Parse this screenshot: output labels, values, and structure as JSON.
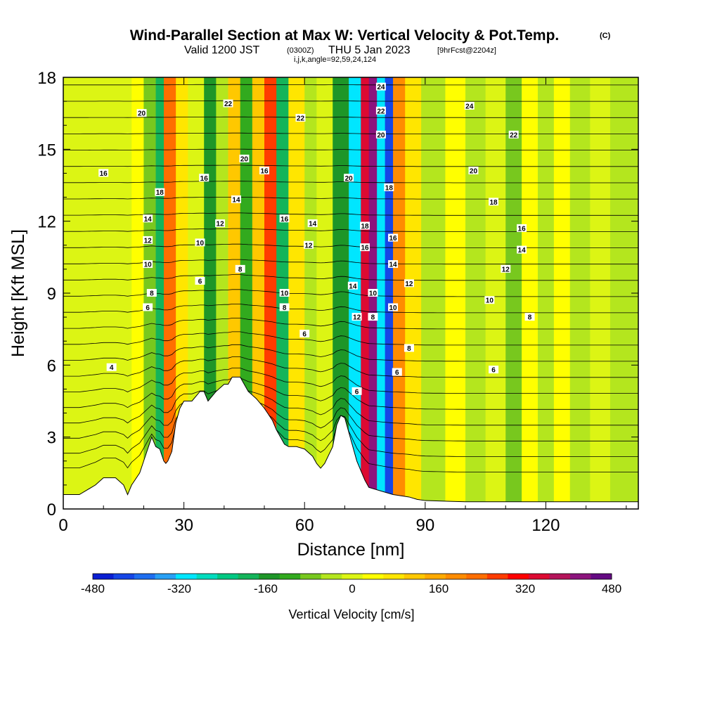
{
  "title": {
    "main": "Wind-Parallel Section at Max W: Vertical Velocity & Pot.Temp.",
    "main_suffix": "(C)",
    "valid_prefix": "Valid 1200 JST",
    "valid_z": "(0300Z)",
    "valid_date": "THU 5 Jan 2023",
    "forecast": "[9hrFcst@2204z]",
    "indices": "i,j,k,angle=92,59,24,124"
  },
  "chart_data": {
    "type": "heatmap",
    "xlabel": "Distance [nm]",
    "ylabel": "Height [Kft MSL]",
    "xlim": [
      0,
      143
    ],
    "ylim": [
      0,
      18
    ],
    "x_ticks": [
      0,
      30,
      60,
      90,
      120
    ],
    "y_ticks": [
      0,
      3,
      6,
      9,
      12,
      15,
      18
    ],
    "x_tick_labels": [
      "0",
      "30",
      "60",
      "90",
      "120"
    ],
    "y_tick_labels": [
      "0",
      "3",
      "6",
      "9",
      "12",
      "15",
      "18"
    ],
    "colorbar": {
      "title": "Vertical Velocity [cm/s]",
      "min": -480,
      "max": 480,
      "step": 40,
      "tick_values": [
        -480,
        -320,
        -160,
        0,
        160,
        320,
        480
      ],
      "tick_labels": [
        "-480",
        "-320",
        "-160",
        "0",
        "160",
        "320",
        "480"
      ],
      "colors": [
        "#0a1ed2",
        "#1646e6",
        "#1e6ef0",
        "#28a0f5",
        "#00e6ff",
        "#00dcbe",
        "#00c882",
        "#14b45a",
        "#1e9628",
        "#32aa1e",
        "#78c81e",
        "#b4e61e",
        "#dcf514",
        "#ffff00",
        "#ffe600",
        "#ffc800",
        "#ffaa00",
        "#ff8c00",
        "#ff6e00",
        "#ff3c00",
        "#ff0000",
        "#dc0a32",
        "#b4145a",
        "#8c147d",
        "#640a82"
      ]
    },
    "vertical_velocity_cells": [
      {
        "x_range": [
          0,
          17
        ],
        "z_range": [
          0,
          18
        ],
        "value": 20
      },
      {
        "x_range": [
          17,
          20
        ],
        "z_range": [
          0,
          18
        ],
        "value": 60
      },
      {
        "x_range": [
          20,
          23
        ],
        "z_range": [
          0,
          18
        ],
        "value": -60
      },
      {
        "x_range": [
          23,
          25
        ],
        "z_range": [
          0,
          18
        ],
        "value": -200
      },
      {
        "x_range": [
          25,
          28
        ],
        "z_range": [
          0,
          18
        ],
        "value": 260
      },
      {
        "x_range": [
          28,
          31
        ],
        "z_range": [
          0,
          18
        ],
        "value": 100
      },
      {
        "x_range": [
          31,
          35
        ],
        "z_range": [
          0,
          18
        ],
        "value": 20
      },
      {
        "x_range": [
          35,
          38
        ],
        "z_range": [
          0,
          18
        ],
        "value": -160
      },
      {
        "x_range": [
          38,
          41
        ],
        "z_range": [
          0,
          18
        ],
        "value": -40
      },
      {
        "x_range": [
          41,
          44
        ],
        "z_range": [
          0,
          18
        ],
        "value": 140
      },
      {
        "x_range": [
          44,
          47
        ],
        "z_range": [
          0,
          18
        ],
        "value": -120
      },
      {
        "x_range": [
          47,
          50
        ],
        "z_range": [
          0,
          18
        ],
        "value": 120
      },
      {
        "x_range": [
          50,
          53
        ],
        "z_range": [
          0,
          18
        ],
        "value": 300
      },
      {
        "x_range": [
          53,
          56
        ],
        "z_range": [
          0,
          18
        ],
        "value": -200
      },
      {
        "x_range": [
          56,
          60
        ],
        "z_range": [
          0,
          18
        ],
        "value": 80
      },
      {
        "x_range": [
          60,
          63
        ],
        "z_range": [
          0,
          18
        ],
        "value": -40
      },
      {
        "x_range": [
          63,
          67
        ],
        "z_range": [
          0,
          18
        ],
        "value": 20
      },
      {
        "x_range": [
          67,
          71
        ],
        "z_range": [
          0,
          18
        ],
        "value": -160
      },
      {
        "x_range": [
          71,
          74
        ],
        "z_range": [
          0,
          18
        ],
        "value": -320
      },
      {
        "x_range": [
          74,
          76
        ],
        "z_range": [
          0,
          18
        ],
        "value": 380
      },
      {
        "x_range": [
          76,
          78
        ],
        "z_range": [
          0,
          18
        ],
        "value": 460
      },
      {
        "x_range": [
          78,
          80
        ],
        "z_range": [
          0,
          18
        ],
        "value": -300
      },
      {
        "x_range": [
          80,
          82
        ],
        "z_range": [
          0,
          18
        ],
        "value": -440
      },
      {
        "x_range": [
          82,
          85
        ],
        "z_range": [
          0,
          18
        ],
        "value": 200
      },
      {
        "x_range": [
          85,
          89
        ],
        "z_range": [
          0,
          18
        ],
        "value": 80
      },
      {
        "x_range": [
          89,
          95
        ],
        "z_range": [
          0,
          18
        ],
        "value": -40
      },
      {
        "x_range": [
          95,
          100
        ],
        "z_range": [
          0,
          18
        ],
        "value": 40
      },
      {
        "x_range": [
          100,
          105
        ],
        "z_range": [
          0,
          18
        ],
        "value": -40
      },
      {
        "x_range": [
          105,
          110
        ],
        "z_range": [
          0,
          18
        ],
        "value": 20
      },
      {
        "x_range": [
          110,
          114
        ],
        "z_range": [
          0,
          18
        ],
        "value": -60
      },
      {
        "x_range": [
          114,
          118
        ],
        "z_range": [
          0,
          18
        ],
        "value": 40
      },
      {
        "x_range": [
          118,
          122
        ],
        "z_range": [
          0,
          18
        ],
        "value": -40
      },
      {
        "x_range": [
          122,
          126
        ],
        "z_range": [
          0,
          18
        ],
        "value": 60
      },
      {
        "x_range": [
          126,
          131
        ],
        "z_range": [
          0,
          18
        ],
        "value": -40
      },
      {
        "x_range": [
          131,
          136
        ],
        "z_range": [
          0,
          18
        ],
        "value": 20
      },
      {
        "x_range": [
          136,
          143
        ],
        "z_range": [
          0,
          18
        ],
        "value": -20
      }
    ],
    "terrain": {
      "x": [
        0,
        4,
        8,
        10,
        13,
        15,
        16,
        17,
        19,
        20,
        21,
        22,
        23,
        24,
        25,
        25.5,
        26,
        27,
        28,
        29,
        30,
        32,
        34,
        35,
        36,
        38,
        40,
        41,
        42,
        44,
        45,
        46,
        48,
        50,
        52,
        53,
        54,
        55,
        56,
        58,
        60,
        62,
        63,
        64,
        65,
        67,
        68,
        69,
        70,
        71,
        72,
        73,
        74,
        75,
        76,
        80,
        82,
        86,
        88,
        90,
        100,
        110,
        120,
        143
      ],
      "z": [
        0.6,
        0.6,
        1.0,
        1.3,
        1.3,
        1.0,
        0.6,
        1.0,
        1.5,
        2.0,
        2.5,
        3.0,
        2.6,
        2.5,
        2.0,
        1.9,
        2.0,
        2.4,
        3.6,
        4.2,
        4.5,
        4.5,
        4.9,
        4.9,
        4.5,
        4.9,
        5.2,
        5.2,
        5.5,
        5.5,
        5.2,
        4.9,
        4.6,
        4.2,
        3.7,
        3.3,
        3.0,
        2.7,
        2.6,
        2.6,
        2.5,
        2.2,
        1.9,
        1.7,
        1.9,
        2.6,
        3.5,
        3.9,
        3.8,
        3.2,
        2.6,
        2.0,
        1.6,
        1.2,
        0.9,
        0.7,
        0.6,
        0.5,
        0.4,
        0.35,
        0.3,
        0.3,
        0.3,
        0.3
      ]
    },
    "potential_temperature_labels": [
      {
        "text": "20",
        "x": 19.5,
        "z": 16.5
      },
      {
        "text": "22",
        "x": 41,
        "z": 16.9
      },
      {
        "text": "22",
        "x": 59,
        "z": 16.3
      },
      {
        "text": "24",
        "x": 79,
        "z": 17.6
      },
      {
        "text": "22",
        "x": 79,
        "z": 16.6
      },
      {
        "text": "20",
        "x": 79,
        "z": 15.6
      },
      {
        "text": "24",
        "x": 101,
        "z": 16.8
      },
      {
        "text": "22",
        "x": 112,
        "z": 15.6
      },
      {
        "text": "16",
        "x": 10,
        "z": 14.0
      },
      {
        "text": "20",
        "x": 45,
        "z": 14.6
      },
      {
        "text": "16",
        "x": 50,
        "z": 14.1
      },
      {
        "text": "20",
        "x": 71,
        "z": 13.8
      },
      {
        "text": "18",
        "x": 81,
        "z": 13.4
      },
      {
        "text": "20",
        "x": 102,
        "z": 14.1
      },
      {
        "text": "18",
        "x": 24,
        "z": 13.2
      },
      {
        "text": "16",
        "x": 35,
        "z": 13.8
      },
      {
        "text": "14",
        "x": 43,
        "z": 12.9
      },
      {
        "text": "18",
        "x": 107,
        "z": 12.8
      },
      {
        "text": "14",
        "x": 21,
        "z": 12.1
      },
      {
        "text": "12",
        "x": 39,
        "z": 11.9
      },
      {
        "text": "16",
        "x": 55,
        "z": 12.1
      },
      {
        "text": "14",
        "x": 62,
        "z": 11.9
      },
      {
        "text": "18",
        "x": 75,
        "z": 11.8
      },
      {
        "text": "16",
        "x": 82,
        "z": 11.3
      },
      {
        "text": "16",
        "x": 114,
        "z": 11.7
      },
      {
        "text": "12",
        "x": 21,
        "z": 11.2
      },
      {
        "text": "10",
        "x": 34,
        "z": 11.1
      },
      {
        "text": "12",
        "x": 61,
        "z": 11.0
      },
      {
        "text": "16",
        "x": 75,
        "z": 10.9
      },
      {
        "text": "14",
        "x": 114,
        "z": 10.8
      },
      {
        "text": "10",
        "x": 21,
        "z": 10.2
      },
      {
        "text": "14",
        "x": 82,
        "z": 10.2
      },
      {
        "text": "8",
        "x": 44,
        "z": 10.0
      },
      {
        "text": "12",
        "x": 110,
        "z": 10.0
      },
      {
        "text": "6",
        "x": 34,
        "z": 9.5
      },
      {
        "text": "8",
        "x": 22,
        "z": 9.0
      },
      {
        "text": "10",
        "x": 55,
        "z": 9.0
      },
      {
        "text": "14",
        "x": 72,
        "z": 9.3
      },
      {
        "text": "10",
        "x": 77,
        "z": 9.0
      },
      {
        "text": "12",
        "x": 86,
        "z": 9.4
      },
      {
        "text": "10",
        "x": 106,
        "z": 8.7
      },
      {
        "text": "6",
        "x": 21,
        "z": 8.4
      },
      {
        "text": "8",
        "x": 55,
        "z": 8.4
      },
      {
        "text": "10",
        "x": 82,
        "z": 8.4
      },
      {
        "text": "12",
        "x": 73,
        "z": 8.0
      },
      {
        "text": "8",
        "x": 77,
        "z": 8.0
      },
      {
        "text": "8",
        "x": 116,
        "z": 8.0
      },
      {
        "text": "6",
        "x": 60,
        "z": 7.3
      },
      {
        "text": "8",
        "x": 86,
        "z": 6.7
      },
      {
        "text": "4",
        "x": 12,
        "z": 5.9
      },
      {
        "text": "6",
        "x": 83,
        "z": 5.7
      },
      {
        "text": "6",
        "x": 107,
        "z": 5.8
      },
      {
        "text": "6",
        "x": 73,
        "z": 4.9
      }
    ]
  }
}
